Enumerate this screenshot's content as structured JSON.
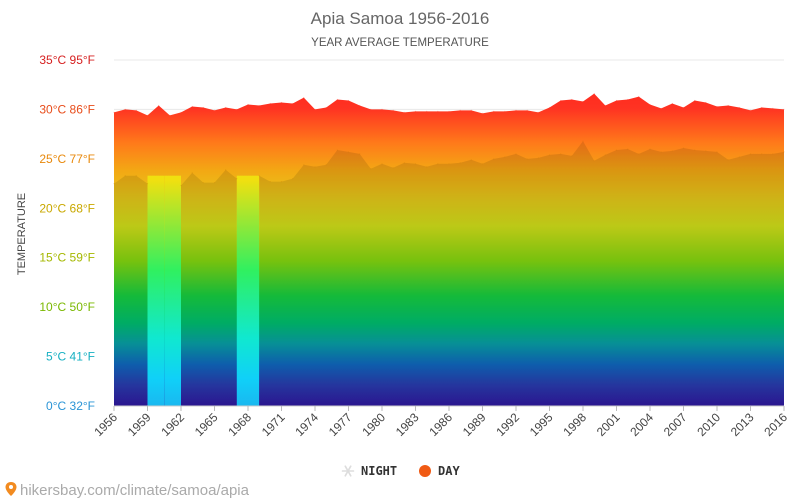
{
  "chart_data": {
    "type": "area",
    "title": "Apia Samoa 1956-2016",
    "subtitle": "YEAR AVERAGE TEMPERATURE",
    "ylabel": "TEMPERATURE",
    "ylim": [
      0,
      35
    ],
    "y_ticks": [
      {
        "value": 0,
        "label": "0°C 32°F",
        "color": "#2a94d6"
      },
      {
        "value": 5,
        "label": "5°C 41°F",
        "color": "#16b0c2"
      },
      {
        "value": 10,
        "label": "10°C 50°F",
        "color": "#7ab800"
      },
      {
        "value": 15,
        "label": "15°C 59°F",
        "color": "#a5b800"
      },
      {
        "value": 20,
        "label": "20°C 68°F",
        "color": "#c9a800"
      },
      {
        "value": 25,
        "label": "25°C 77°F",
        "color": "#e8890c"
      },
      {
        "value": 30,
        "label": "30°C 86°F",
        "color": "#e84c1a"
      },
      {
        "value": 35,
        "label": "35°C 95°F",
        "color": "#d62020"
      }
    ],
    "x_ticks": [
      "1956",
      "1959",
      "1962",
      "1965",
      "1968",
      "1971",
      "1974",
      "1977",
      "1980",
      "1983",
      "1986",
      "1989",
      "1992",
      "1995",
      "1998",
      "2001",
      "2004",
      "2007",
      "2010",
      "2013",
      "2016"
    ],
    "x": [
      1956,
      1957,
      1958,
      1959,
      1960,
      1961,
      1962,
      1963,
      1964,
      1965,
      1966,
      1967,
      1968,
      1969,
      1970,
      1971,
      1972,
      1973,
      1974,
      1975,
      1976,
      1977,
      1978,
      1979,
      1980,
      1981,
      1982,
      1983,
      1984,
      1985,
      1986,
      1987,
      1988,
      1989,
      1990,
      1991,
      1992,
      1993,
      1994,
      1995,
      1996,
      1997,
      1998,
      1999,
      2000,
      2001,
      2002,
      2003,
      2004,
      2005,
      2006,
      2007,
      2008,
      2009,
      2010,
      2011,
      2012,
      2013,
      2014,
      2015,
      2016
    ],
    "series": [
      {
        "name": "NIGHT",
        "color": "#f0f0f0",
        "values": [
          22.5,
          23.3,
          23.3,
          22.5,
          null,
          null,
          22.3,
          23.6,
          22.6,
          22.6,
          23.9,
          23.0,
          null,
          23.3,
          22.7,
          22.7,
          23.0,
          24.4,
          24.2,
          24.4,
          25.9,
          25.7,
          25.5,
          24.0,
          24.5,
          24.1,
          24.6,
          24.5,
          24.2,
          24.5,
          24.5,
          24.6,
          24.9,
          24.5,
          25.0,
          25.2,
          25.5,
          25.0,
          25.1,
          25.4,
          25.5,
          25.3,
          26.8,
          24.8,
          25.4,
          25.9,
          26.0,
          25.5,
          26.0,
          25.7,
          25.8,
          26.1,
          25.9,
          25.8,
          25.7,
          24.9,
          25.2,
          25.5,
          25.5,
          25.5,
          25.7
        ]
      },
      {
        "name": "DAY",
        "color": "#f05a14",
        "values": [
          29.7,
          30.0,
          29.9,
          29.4,
          30.4,
          29.4,
          29.7,
          30.3,
          30.2,
          29.9,
          30.2,
          30.0,
          30.5,
          30.4,
          30.6,
          30.7,
          30.6,
          31.2,
          30.0,
          30.2,
          31.0,
          30.9,
          30.4,
          30.0,
          30.0,
          29.9,
          29.7,
          29.8,
          29.8,
          29.8,
          29.8,
          29.9,
          29.9,
          29.6,
          29.8,
          29.8,
          29.9,
          29.9,
          29.7,
          30.2,
          30.9,
          31.0,
          30.8,
          31.6,
          30.4,
          30.9,
          31.0,
          31.3,
          30.5,
          30.1,
          30.6,
          30.2,
          30.9,
          30.7,
          30.3,
          30.4,
          30.2,
          29.9,
          30.2,
          30.1,
          30.0
        ]
      }
    ],
    "legend_position": "bottom-center",
    "grid": true
  },
  "source_label": "hikersbay.com/climate/samoa/apia"
}
